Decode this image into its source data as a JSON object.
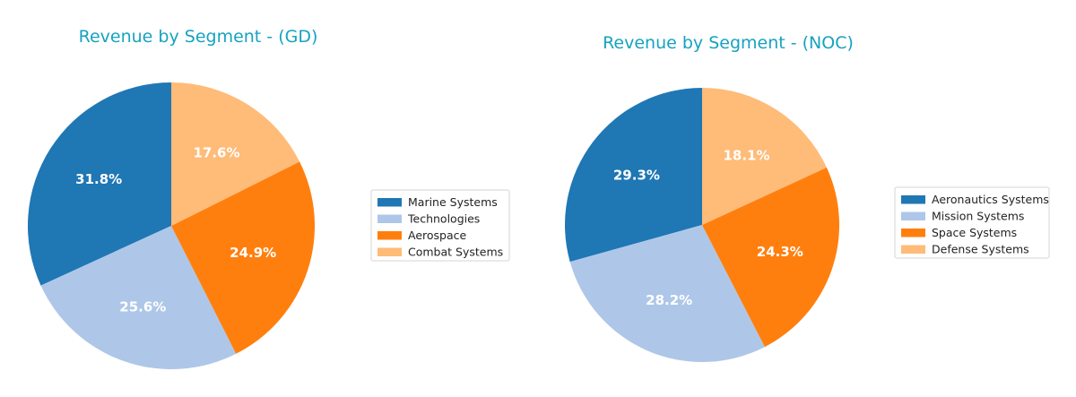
{
  "chart_data": [
    {
      "type": "pie",
      "title": "Revenue by Segment - (GD)",
      "categories": [
        "Marine Systems",
        "Technologies",
        "Aerospace",
        "Combat Systems"
      ],
      "values": [
        31.8,
        25.6,
        24.9,
        17.6
      ],
      "value_labels": [
        "31.8%",
        "25.6%",
        "24.9%",
        "17.6%"
      ],
      "colors": [
        "#1f77b4",
        "#aec7e8",
        "#ff7f0e",
        "#ffbb78"
      ],
      "start_angle": "90 (top)",
      "direction": "counterclockwise",
      "legend_position": "right"
    },
    {
      "type": "pie",
      "title": "Revenue by Segment - (NOC)",
      "categories": [
        "Aeronautics Systems",
        "Mission Systems",
        "Space Systems",
        "Defense Systems"
      ],
      "values": [
        29.3,
        28.2,
        24.3,
        18.1
      ],
      "value_labels": [
        "29.3%",
        "28.2%",
        "24.3%",
        "18.1%"
      ],
      "colors": [
        "#1f77b4",
        "#aec7e8",
        "#ff7f0e",
        "#ffbb78"
      ],
      "start_angle": "90 (top)",
      "direction": "counterclockwise",
      "legend_position": "right"
    }
  ]
}
